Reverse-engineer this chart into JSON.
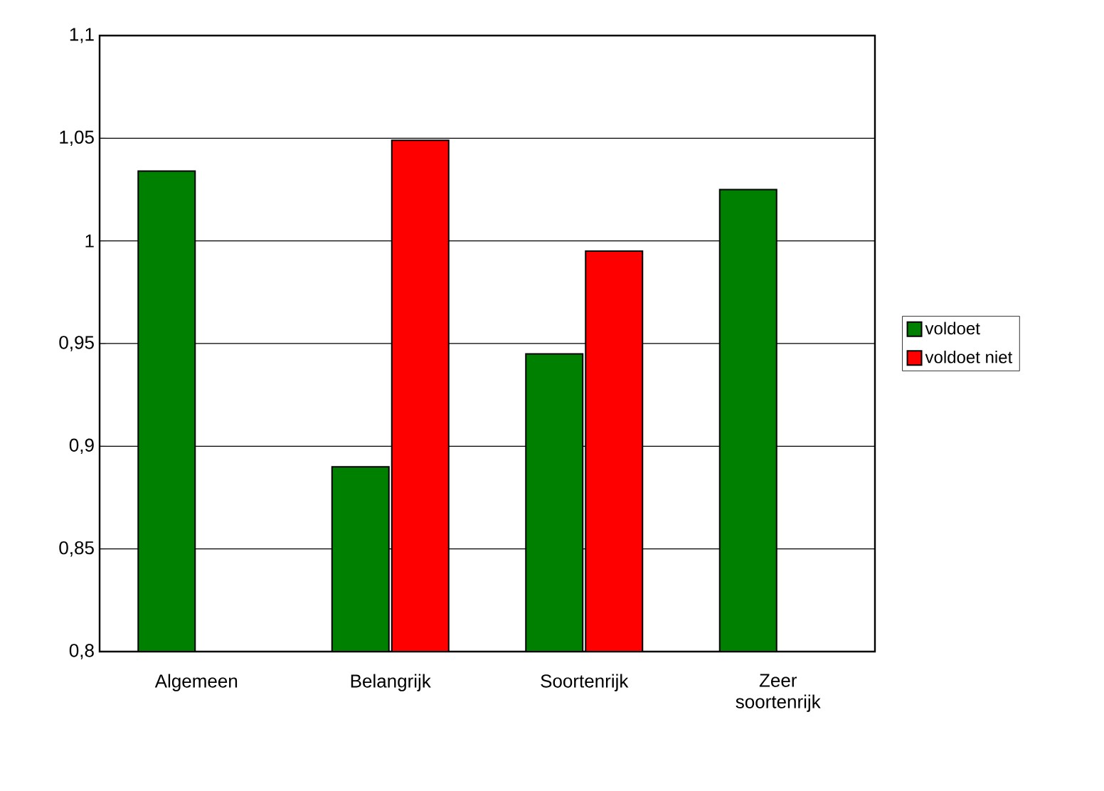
{
  "chart_data": {
    "type": "bar",
    "categories": [
      "Algemeen",
      "Belangrijk",
      "Soortenrijk",
      "Zeer soortenrijk"
    ],
    "series": [
      {
        "name": "voldoet",
        "color": "#008000",
        "values": [
          1.034,
          0.89,
          0.945,
          1.025
        ]
      },
      {
        "name": "voldoet niet",
        "color": "#ff0000",
        "values": [
          null,
          1.049,
          0.995,
          null
        ]
      }
    ],
    "ylim": [
      0.8,
      1.1
    ],
    "yticks": [
      {
        "value": 0.8,
        "label": "0,8"
      },
      {
        "value": 0.85,
        "label": "0,85"
      },
      {
        "value": 0.9,
        "label": "0,9"
      },
      {
        "value": 0.95,
        "label": "0,95"
      },
      {
        "value": 1,
        "label": "1"
      },
      {
        "value": 1.05,
        "label": "1,05"
      },
      {
        "value": 1.1,
        "label": "1,1"
      }
    ],
    "grid": "y",
    "legend": "right"
  }
}
